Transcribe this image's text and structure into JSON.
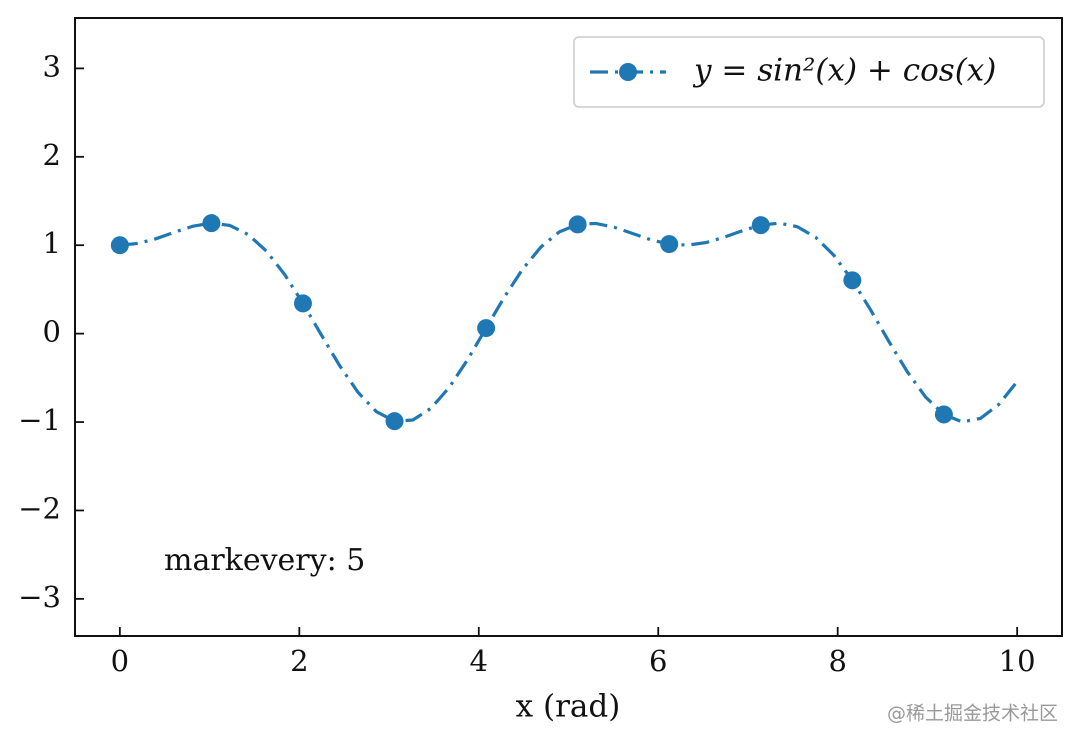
{
  "chart_data": {
    "type": "line",
    "xlabel": "x (rad)",
    "annotation": "markevery: 5",
    "watermark": "@稀土掘金技术社区",
    "markevery": 5,
    "linestyle": "dashdot",
    "legend": "upper right",
    "x": [
      0,
      0.2041,
      0.4082,
      0.6122,
      0.8163,
      1.0204,
      1.2245,
      1.4286,
      1.6327,
      1.8367,
      2.0408,
      2.2449,
      2.449,
      2.6531,
      2.8571,
      3.0612,
      3.2653,
      3.4694,
      3.6735,
      3.8776,
      4.0816,
      4.2857,
      4.4898,
      4.6939,
      4.898,
      5.102,
      5.3061,
      5.5102,
      5.7143,
      5.9184,
      6.1224,
      6.3265,
      6.5306,
      6.7347,
      6.9388,
      7.1429,
      7.3469,
      7.551,
      7.7551,
      7.9592,
      8.1633,
      8.3673,
      8.5714,
      8.7755,
      8.9796,
      9.1837,
      9.3878,
      9.5918,
      9.7959,
      10
    ],
    "series": [
      {
        "name": "y = sin²(x) + cos(x)",
        "color": "#1f77b4",
        "values": [
          1,
          1.0203,
          1.0754,
          1.1487,
          1.2158,
          1.2495,
          1.2242,
          1.1217,
          0.9344,
          0.6681,
          0.342,
          -0.0138,
          -0.3618,
          -0.6628,
          -0.8811,
          -0.9903,
          -0.9771,
          -0.8431,
          -0.6047,
          -0.2906,
          0.0624,
          0.4149,
          0.7305,
          0.9811,
          1.1505,
          1.2356,
          1.2465,
          1.2034,
          1.1327,
          1.0615,
          1.0127,
          1.0009,
          1.0295,
          1.0902,
          1.1643,
          1.2267,
          1.2498,
          1.2093,
          1.089,
          0.884,
          0.603,
          0.2677,
          -0.0897,
          -0.431,
          -0.7171,
          -0.9141,
          -0.9979,
          -0.9584,
          -0.8004,
          -0.5431
        ]
      }
    ],
    "xlim": [
      -0.5,
      10.5
    ],
    "xticks": [
      0,
      2,
      4,
      6,
      8,
      10
    ],
    "ylim": [
      -3.42,
      3.57
    ],
    "yticks": [
      {
        "value": -3,
        "label": "−3"
      },
      {
        "value": -2,
        "label": "−2"
      },
      {
        "value": -1,
        "label": "−1"
      },
      0,
      1,
      2,
      3
    ]
  }
}
